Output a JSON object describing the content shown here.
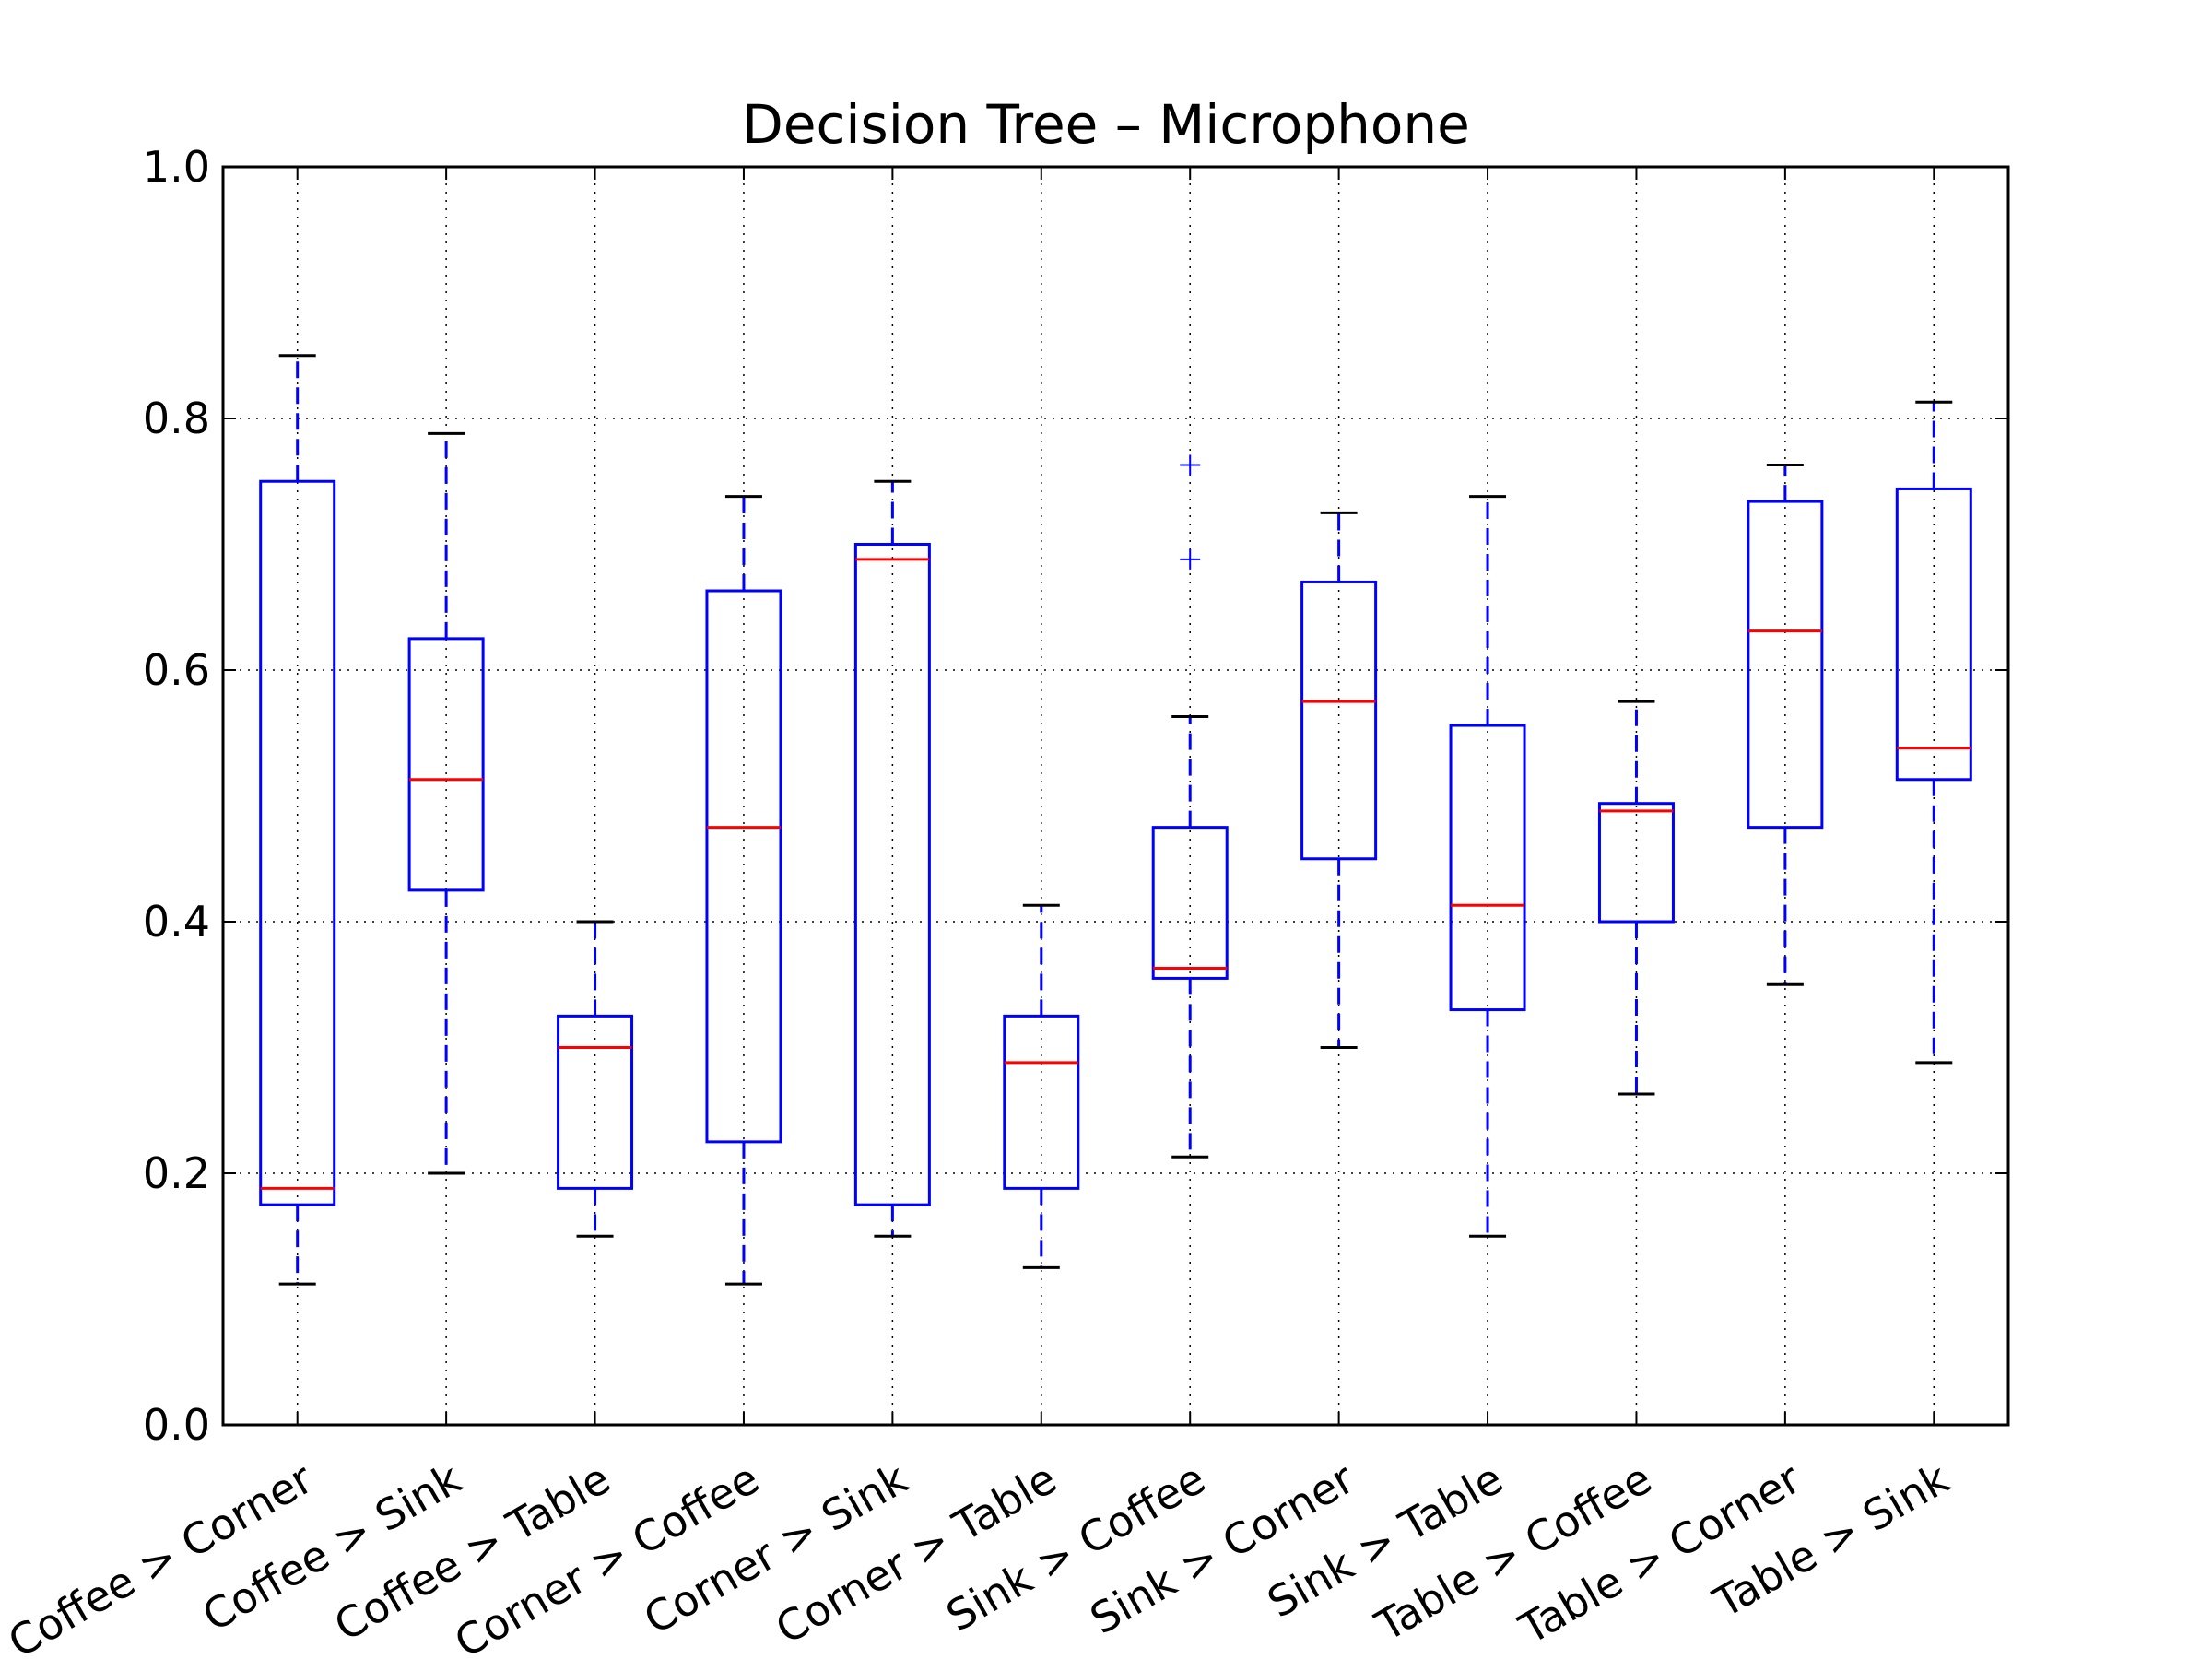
{
  "chart_data": {
    "type": "box",
    "title": "Decision Tree – Microphone",
    "xlabel": "",
    "ylabel": "",
    "ylim": [
      0.0,
      1.0
    ],
    "yticks": [
      "0.0",
      "0.2",
      "0.4",
      "0.6",
      "0.8",
      "1.0"
    ],
    "grid": true,
    "colors": {
      "box": "#0000ff",
      "whisker": "#0000ff",
      "median": "#ff0000",
      "cap": "#000000",
      "flier": "#0000ff"
    },
    "categories": [
      "Coffee > Corner",
      "Coffee > Sink",
      "Coffee > Table",
      "Corner > Coffee",
      "Corner > Sink",
      "Corner > Table",
      "Sink > Coffee",
      "Sink > Corner",
      "Sink > Table",
      "Table > Coffee",
      "Table > Corner",
      "Table > Sink"
    ],
    "boxes": [
      {
        "whislo": 0.112,
        "q1": 0.175,
        "med": 0.188,
        "q3": 0.75,
        "whishi": 0.85,
        "fliers": []
      },
      {
        "whislo": 0.2,
        "q1": 0.425,
        "med": 0.513,
        "q3": 0.625,
        "whishi": 0.788,
        "fliers": []
      },
      {
        "whislo": 0.15,
        "q1": 0.188,
        "med": 0.3,
        "q3": 0.325,
        "whishi": 0.4,
        "fliers": []
      },
      {
        "whislo": 0.112,
        "q1": 0.225,
        "med": 0.475,
        "q3": 0.663,
        "whishi": 0.738,
        "fliers": []
      },
      {
        "whislo": 0.15,
        "q1": 0.175,
        "med": 0.688,
        "q3": 0.7,
        "whishi": 0.75,
        "fliers": []
      },
      {
        "whislo": 0.125,
        "q1": 0.188,
        "med": 0.288,
        "q3": 0.325,
        "whishi": 0.413,
        "fliers": []
      },
      {
        "whislo": 0.213,
        "q1": 0.355,
        "med": 0.363,
        "q3": 0.475,
        "whishi": 0.563,
        "fliers": [
          0.688,
          0.763
        ]
      },
      {
        "whislo": 0.3,
        "q1": 0.45,
        "med": 0.575,
        "q3": 0.67,
        "whishi": 0.725,
        "fliers": []
      },
      {
        "whislo": 0.15,
        "q1": 0.33,
        "med": 0.413,
        "q3": 0.556,
        "whishi": 0.738,
        "fliers": []
      },
      {
        "whislo": 0.263,
        "q1": 0.4,
        "med": 0.488,
        "q3": 0.494,
        "whishi": 0.575,
        "fliers": []
      },
      {
        "whislo": 0.35,
        "q1": 0.475,
        "med": 0.631,
        "q3": 0.734,
        "whishi": 0.763,
        "fliers": []
      },
      {
        "whislo": 0.288,
        "q1": 0.513,
        "med": 0.538,
        "q3": 0.744,
        "whishi": 0.813,
        "fliers": []
      }
    ]
  }
}
